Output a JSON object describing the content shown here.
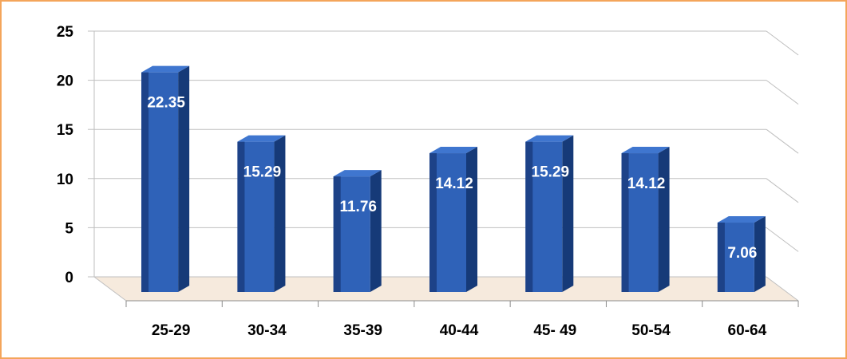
{
  "chart_data": {
    "type": "bar",
    "categories": [
      "25-29",
      "30-34",
      "35-39",
      "40-44",
      "45- 49",
      "50-54",
      "60-64"
    ],
    "values": [
      22.35,
      15.29,
      11.76,
      14.12,
      15.29,
      14.12,
      7.06
    ],
    "value_labels": [
      "22.35",
      "15.29",
      "11.76",
      "14.12",
      "15.29",
      "14.12",
      "7.06"
    ],
    "yticks": [
      "0",
      "5",
      "10",
      "15",
      "20",
      "25"
    ],
    "ylim": [
      0,
      25
    ],
    "grid": true,
    "style": "3d-column",
    "colors": {
      "bar_front": "#2f62b8",
      "bar_side": "#163a78",
      "bar_top": "#3f76cf",
      "border": "#f4a55b",
      "label": "#ffffff",
      "axis_text": "#000000",
      "grid": "#bfbfbf",
      "floor": "#f2e1cf"
    }
  }
}
